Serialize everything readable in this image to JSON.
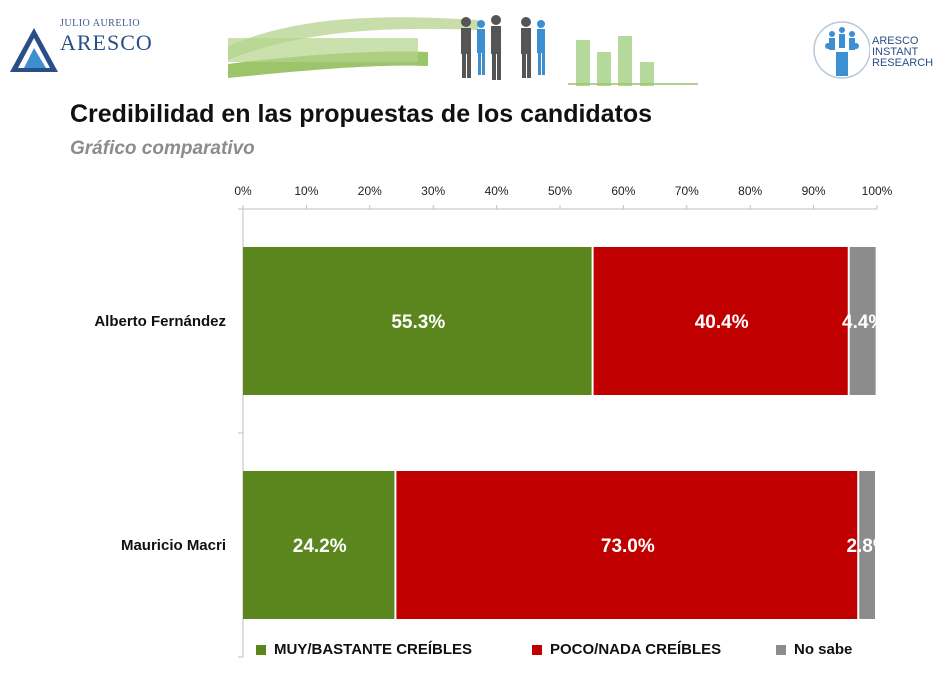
{
  "header": {
    "logo_left": {
      "small": "JULIO AURELIO",
      "big": "ARESCO"
    },
    "logo_right": {
      "lines": [
        "ARESCO",
        "INSTANT",
        "RESEARCH"
      ]
    }
  },
  "title": "Credibilidad en las propuestas de los candidatos",
  "subtitle": "Gráfico comparativo",
  "chart_data": {
    "type": "bar",
    "orientation": "horizontal",
    "stacked": true,
    "categories": [
      "Alberto Fernández",
      "Mauricio Macri"
    ],
    "series": [
      {
        "name": "MUY/BASTANTE CREÍBLES",
        "values": [
          55.3,
          24.2
        ],
        "labels": [
          "55.3%",
          "24.2%"
        ],
        "color": "#5b861e"
      },
      {
        "name": "POCO/NADA CREÍBLES",
        "values": [
          40.4,
          73.0
        ],
        "labels": [
          "40.4%",
          "73.0%"
        ],
        "color": "#c00000"
      },
      {
        "name": "No sabe",
        "values": [
          4.4,
          2.8
        ],
        "labels": [
          "4.4%",
          "2.8%"
        ],
        "color": "#8c8c8c"
      }
    ],
    "xlim": [
      0,
      100
    ],
    "x_ticks": [
      "0%",
      "10%",
      "20%",
      "30%",
      "40%",
      "50%",
      "60%",
      "70%",
      "80%",
      "90%",
      "100%"
    ],
    "x_axis_position": "top",
    "legend_position": "bottom",
    "grid": false
  }
}
